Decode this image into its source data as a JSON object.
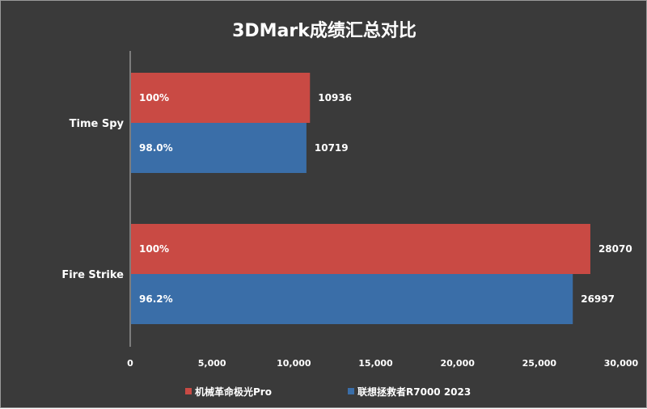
{
  "chart_data": {
    "type": "bar",
    "orientation": "horizontal",
    "title": "3DMark成绩汇总对比",
    "categories": [
      "Time Spy",
      "Fire Strike"
    ],
    "series": [
      {
        "name": "机械革命极光Pro",
        "color": "#c94a44",
        "values": [
          10936,
          28070
        ],
        "labels": [
          "100%",
          "100%"
        ]
      },
      {
        "name": "联想拯救者R7000 2023",
        "color": "#3a6ea8",
        "values": [
          10719,
          26997
        ],
        "labels": [
          "98.0%",
          "96.2%"
        ]
      }
    ],
    "xlim": [
      0,
      30000
    ],
    "xticks": [
      0,
      5000,
      10000,
      15000,
      20000,
      25000,
      30000
    ],
    "xtick_labels": [
      "0",
      "5,000",
      "10,000",
      "15,000",
      "20,000",
      "25,000",
      "30,000"
    ],
    "legend_position": "bottom",
    "grid": false
  }
}
